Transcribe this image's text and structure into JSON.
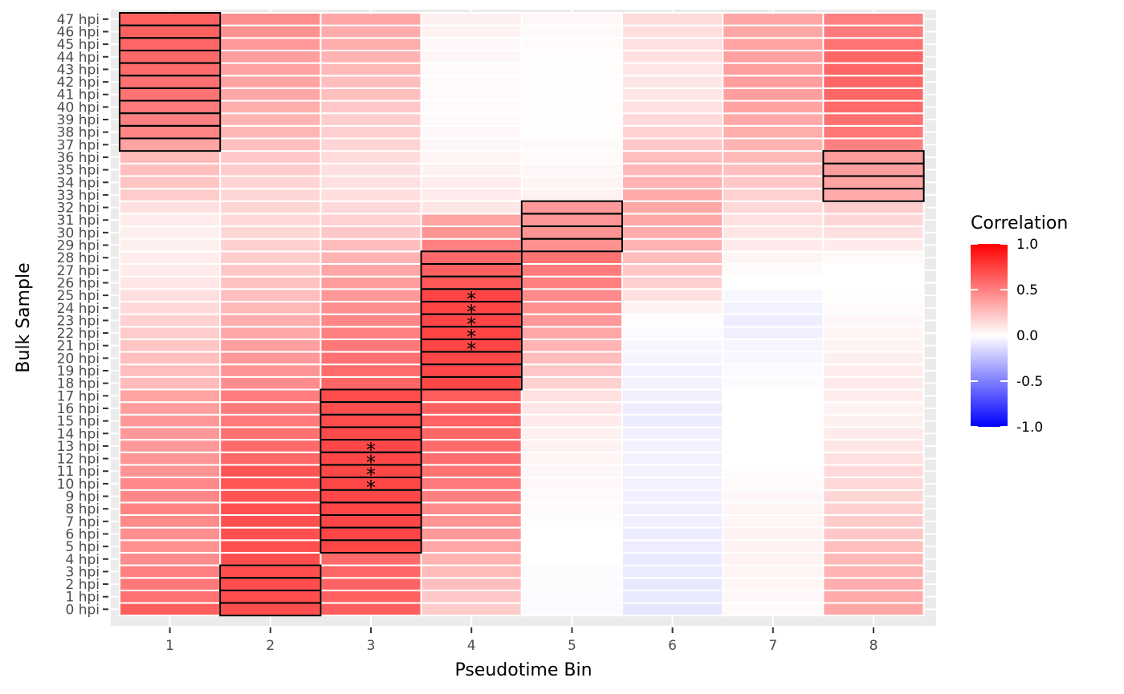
{
  "chart_data": {
    "type": "heatmap",
    "xlabel": "Pseudotime Bin",
    "ylabel": "Bulk Sample",
    "x_categories": [
      "1",
      "2",
      "3",
      "4",
      "5",
      "6",
      "7",
      "8"
    ],
    "y_categories": [
      "0 hpi",
      "1 hpi",
      "2 hpi",
      "3 hpi",
      "4 hpi",
      "5 hpi",
      "6 hpi",
      "7 hpi",
      "8 hpi",
      "9 hpi",
      "10 hpi",
      "11 hpi",
      "12 hpi",
      "13 hpi",
      "14 hpi",
      "15 hpi",
      "16 hpi",
      "17 hpi",
      "18 hpi",
      "19 hpi",
      "20 hpi",
      "21 hpi",
      "22 hpi",
      "23 hpi",
      "24 hpi",
      "25 hpi",
      "26 hpi",
      "27 hpi",
      "28 hpi",
      "29 hpi",
      "30 hpi",
      "31 hpi",
      "32 hpi",
      "33 hpi",
      "34 hpi",
      "35 hpi",
      "36 hpi",
      "37 hpi",
      "38 hpi",
      "39 hpi",
      "40 hpi",
      "41 hpi",
      "42 hpi",
      "43 hpi",
      "44 hpi",
      "45 hpi",
      "46 hpi",
      "47 hpi"
    ],
    "series_by_bin": [
      {
        "bin": "1",
        "values": [
          0.63,
          0.56,
          0.53,
          0.5,
          0.45,
          0.43,
          0.44,
          0.46,
          0.48,
          0.47,
          0.47,
          0.42,
          0.41,
          0.4,
          0.4,
          0.4,
          0.38,
          0.36,
          0.27,
          0.26,
          0.25,
          0.23,
          0.2,
          0.18,
          0.15,
          0.13,
          0.1,
          0.08,
          0.07,
          0.06,
          0.06,
          0.08,
          0.12,
          0.2,
          0.23,
          0.25,
          0.27,
          0.36,
          0.48,
          0.5,
          0.52,
          0.55,
          0.56,
          0.58,
          0.59,
          0.6,
          0.62,
          0.62
        ]
      },
      {
        "bin": "2",
        "values": [
          0.7,
          0.7,
          0.7,
          0.7,
          0.7,
          0.69,
          0.69,
          0.69,
          0.69,
          0.68,
          0.67,
          0.67,
          0.6,
          0.58,
          0.56,
          0.52,
          0.52,
          0.51,
          0.45,
          0.42,
          0.4,
          0.38,
          0.35,
          0.32,
          0.28,
          0.26,
          0.24,
          0.22,
          0.2,
          0.18,
          0.16,
          0.15,
          0.16,
          0.16,
          0.17,
          0.2,
          0.22,
          0.25,
          0.29,
          0.3,
          0.32,
          0.35,
          0.36,
          0.37,
          0.38,
          0.4,
          0.43,
          0.44
        ]
      },
      {
        "bin": "3",
        "values": [
          0.63,
          0.62,
          0.61,
          0.6,
          0.59,
          0.73,
          0.73,
          0.73,
          0.73,
          0.72,
          0.72,
          0.72,
          0.72,
          0.72,
          0.71,
          0.7,
          0.7,
          0.7,
          0.6,
          0.58,
          0.56,
          0.53,
          0.5,
          0.47,
          0.44,
          0.4,
          0.38,
          0.35,
          0.3,
          0.26,
          0.22,
          0.18,
          0.15,
          0.13,
          0.12,
          0.12,
          0.14,
          0.17,
          0.19,
          0.2,
          0.22,
          0.25,
          0.26,
          0.28,
          0.3,
          0.32,
          0.33,
          0.35
        ]
      },
      {
        "bin": "4",
        "values": [
          0.2,
          0.22,
          0.25,
          0.27,
          0.3,
          0.35,
          0.4,
          0.42,
          0.45,
          0.5,
          0.52,
          0.55,
          0.57,
          0.58,
          0.6,
          0.61,
          0.62,
          0.63,
          0.72,
          0.72,
          0.72,
          0.73,
          0.73,
          0.73,
          0.73,
          0.73,
          0.66,
          0.62,
          0.59,
          0.5,
          0.42,
          0.36,
          0.1,
          0.08,
          0.07,
          0.05,
          0.04,
          0.03,
          0.03,
          0.02,
          0.02,
          0.02,
          0.02,
          0.02,
          0.03,
          0.03,
          0.05,
          0.06
        ]
      },
      {
        "bin": "5",
        "values": [
          -0.02,
          -0.02,
          -0.01,
          -0.01,
          0.0,
          0.0,
          0.0,
          0.01,
          0.02,
          0.02,
          0.03,
          0.03,
          0.04,
          0.05,
          0.06,
          0.08,
          0.1,
          0.12,
          0.18,
          0.22,
          0.26,
          0.3,
          0.35,
          0.4,
          0.43,
          0.46,
          0.5,
          0.52,
          0.55,
          0.43,
          0.42,
          0.41,
          0.4,
          0.05,
          0.04,
          0.03,
          0.02,
          0.02,
          0.01,
          0.01,
          0.01,
          0.01,
          0.01,
          0.01,
          0.01,
          0.02,
          0.02,
          0.03
        ]
      },
      {
        "bin": "6",
        "values": [
          -0.1,
          -0.09,
          -0.09,
          -0.08,
          -0.08,
          -0.07,
          -0.07,
          -0.06,
          -0.06,
          -0.06,
          -0.05,
          -0.05,
          -0.05,
          -0.05,
          -0.06,
          -0.07,
          -0.07,
          -0.06,
          -0.05,
          -0.05,
          -0.04,
          -0.03,
          -0.02,
          0.01,
          0.05,
          0.12,
          0.18,
          0.22,
          0.26,
          0.3,
          0.33,
          0.34,
          0.35,
          0.33,
          0.3,
          0.28,
          0.25,
          0.22,
          0.18,
          0.15,
          0.12,
          0.1,
          0.1,
          0.1,
          0.12,
          0.12,
          0.13,
          0.14
        ]
      },
      {
        "bin": "7",
        "values": [
          0.02,
          0.03,
          0.04,
          0.04,
          0.05,
          0.05,
          0.05,
          0.04,
          0.04,
          0.03,
          0.02,
          0.01,
          0.0,
          0.0,
          0.0,
          0.0,
          0.0,
          0.0,
          -0.01,
          -0.02,
          -0.03,
          -0.04,
          -0.06,
          -0.07,
          -0.05,
          -0.03,
          0.0,
          0.02,
          0.04,
          0.08,
          0.1,
          0.12,
          0.15,
          0.18,
          0.22,
          0.25,
          0.28,
          0.3,
          0.32,
          0.34,
          0.36,
          0.38,
          0.38,
          0.38,
          0.37,
          0.36,
          0.35,
          0.35
        ]
      },
      {
        "bin": "8",
        "values": [
          0.35,
          0.33,
          0.32,
          0.3,
          0.28,
          0.25,
          0.22,
          0.2,
          0.18,
          0.16,
          0.15,
          0.15,
          0.12,
          0.1,
          0.08,
          0.06,
          0.05,
          0.07,
          0.08,
          0.07,
          0.06,
          0.05,
          0.04,
          0.03,
          0.02,
          0.01,
          0.0,
          0.0,
          0.02,
          0.08,
          0.12,
          0.16,
          0.2,
          0.33,
          0.36,
          0.38,
          0.39,
          0.5,
          0.53,
          0.56,
          0.59,
          0.6,
          0.6,
          0.6,
          0.6,
          0.55,
          0.52,
          0.5
        ]
      }
    ],
    "highlighted_cells": [
      {
        "bin": "1",
        "samples": [
          "37 hpi",
          "38 hpi",
          "39 hpi",
          "40 hpi",
          "41 hpi",
          "42 hpi",
          "43 hpi",
          "44 hpi",
          "45 hpi",
          "46 hpi",
          "47 hpi"
        ]
      },
      {
        "bin": "2",
        "samples": [
          "0 hpi",
          "1 hpi",
          "2 hpi",
          "3 hpi"
        ]
      },
      {
        "bin": "3",
        "samples": [
          "5 hpi",
          "6 hpi",
          "7 hpi",
          "8 hpi",
          "9 hpi",
          "10 hpi",
          "11 hpi",
          "12 hpi",
          "13 hpi",
          "14 hpi",
          "15 hpi",
          "16 hpi",
          "17 hpi"
        ]
      },
      {
        "bin": "4",
        "samples": [
          "18 hpi",
          "19 hpi",
          "20 hpi",
          "21 hpi",
          "22 hpi",
          "23 hpi",
          "24 hpi",
          "25 hpi",
          "26 hpi",
          "27 hpi",
          "28 hpi"
        ]
      },
      {
        "bin": "5",
        "samples": [
          "29 hpi",
          "30 hpi",
          "31 hpi",
          "32 hpi"
        ]
      },
      {
        "bin": "8",
        "samples": [
          "33 hpi",
          "34 hpi",
          "35 hpi",
          "36 hpi"
        ]
      }
    ],
    "significance_marks": [
      {
        "bin": "3",
        "samples": [
          "10 hpi",
          "11 hpi",
          "12 hpi",
          "13 hpi"
        ],
        "symbol": "*"
      },
      {
        "bin": "4",
        "samples": [
          "21 hpi",
          "22 hpi",
          "23 hpi",
          "24 hpi",
          "25 hpi"
        ],
        "symbol": "*"
      }
    ],
    "legend": {
      "title": "Correlation",
      "ticks": [
        "1.0",
        "0.5",
        "0.0",
        "-0.5",
        "-1.0"
      ],
      "range": [
        -1.0,
        1.0
      ],
      "low_color": "#0000FF",
      "mid_color": "#FFFFFF",
      "high_color": "#FF0000",
      "placement": "right"
    }
  }
}
